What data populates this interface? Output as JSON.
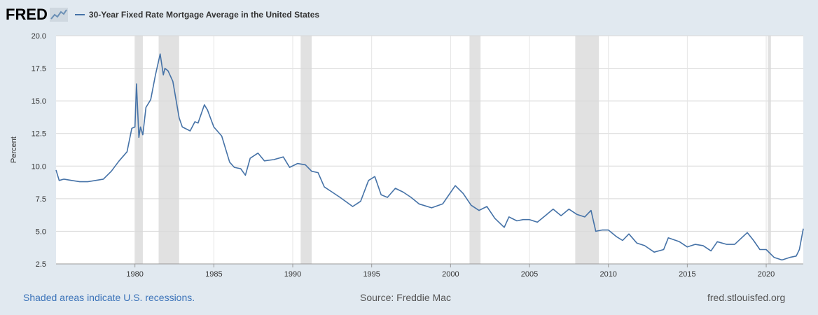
{
  "header": {
    "logo_text": "FRED",
    "legend_label": "30-Year Fixed Rate Mortgage Average in the United States"
  },
  "colors": {
    "series": "#4572a7",
    "recession": "#e1e1e1",
    "background": "#e1e9f0",
    "link": "#3b73b9"
  },
  "footer": {
    "left": "Shaded areas indicate U.S. recessions.",
    "center": "Source: Freddie Mac",
    "right": "fred.stlouisfed.org"
  },
  "chart_data": {
    "type": "line",
    "title": "30-Year Fixed Rate Mortgage Average in the United States",
    "xlabel": "",
    "ylabel": "Percent",
    "xlim": [
      1975.0,
      2022.35
    ],
    "ylim": [
      2.5,
      20.0
    ],
    "xticks": [
      1980,
      1985,
      1990,
      1995,
      2000,
      2005,
      2010,
      2015,
      2020
    ],
    "yticks": [
      2.5,
      5.0,
      7.5,
      10.0,
      12.5,
      15.0,
      17.5,
      20.0
    ],
    "ytick_labels": [
      "2.5",
      "5.0",
      "7.5",
      "10.0",
      "12.5",
      "15.0",
      "17.5",
      "20.0"
    ],
    "grid": {
      "y": true,
      "x": true
    },
    "recessions": [
      [
        1980.0,
        1980.5
      ],
      [
        1981.5,
        1982.8
      ],
      [
        1990.5,
        1991.2
      ],
      [
        2001.2,
        2001.9
      ],
      [
        2007.9,
        2009.4
      ],
      [
        2020.1,
        2020.3
      ]
    ],
    "series": [
      {
        "x": [
          1975.0,
          1975.2,
          1975.5,
          1976.0,
          1976.5,
          1977.0,
          1977.5,
          1978.0,
          1978.5,
          1979.0,
          1979.5,
          1979.8,
          1980.0,
          1980.1,
          1980.25,
          1980.35,
          1980.5,
          1980.7,
          1981.0,
          1981.3,
          1981.6,
          1981.8,
          1981.9,
          1982.1,
          1982.4,
          1982.8,
          1983.0,
          1983.5,
          1983.8,
          1984.0,
          1984.4,
          1984.6,
          1985.0,
          1985.5,
          1986.0,
          1986.3,
          1986.7,
          1987.0,
          1987.3,
          1987.8,
          1988.2,
          1988.8,
          1989.4,
          1989.8,
          1990.3,
          1990.8,
          1991.2,
          1991.6,
          1992.0,
          1992.5,
          1993.0,
          1993.8,
          1994.3,
          1994.8,
          1995.2,
          1995.6,
          1996.0,
          1996.5,
          1997.0,
          1997.5,
          1998.0,
          1998.8,
          1999.5,
          2000.3,
          2000.8,
          2001.3,
          2001.8,
          2002.3,
          2002.8,
          2003.4,
          2003.7,
          2004.2,
          2004.6,
          2005.0,
          2005.5,
          2006.0,
          2006.5,
          2007.0,
          2007.5,
          2008.0,
          2008.5,
          2008.9,
          2009.2,
          2009.6,
          2010.0,
          2010.5,
          2010.9,
          2011.3,
          2011.8,
          2012.3,
          2012.9,
          2013.5,
          2013.8,
          2014.5,
          2015.0,
          2015.5,
          2016.0,
          2016.5,
          2016.9,
          2017.5,
          2018.0,
          2018.8,
          2019.2,
          2019.6,
          2020.0,
          2020.5,
          2021.0,
          2021.5,
          2021.9,
          2022.1,
          2022.35
        ],
        "y": [
          9.7,
          8.9,
          9.0,
          8.9,
          8.8,
          8.8,
          8.9,
          9.0,
          9.6,
          10.4,
          11.1,
          12.9,
          13.0,
          16.3,
          12.2,
          13.0,
          12.4,
          14.5,
          15.1,
          17.0,
          18.6,
          17.0,
          17.5,
          17.3,
          16.5,
          13.7,
          13.0,
          12.7,
          13.4,
          13.3,
          14.7,
          14.3,
          13.0,
          12.3,
          10.3,
          9.9,
          9.8,
          9.3,
          10.6,
          11.0,
          10.4,
          10.5,
          10.7,
          9.9,
          10.2,
          10.1,
          9.6,
          9.5,
          8.4,
          8.0,
          7.6,
          6.9,
          7.3,
          8.9,
          9.2,
          7.8,
          7.6,
          8.3,
          8.0,
          7.6,
          7.1,
          6.8,
          7.1,
          8.5,
          7.9,
          7.0,
          6.6,
          6.9,
          6.0,
          5.3,
          6.1,
          5.8,
          5.9,
          5.9,
          5.7,
          6.2,
          6.7,
          6.2,
          6.7,
          6.3,
          6.1,
          6.6,
          5.0,
          5.1,
          5.1,
          4.6,
          4.3,
          4.8,
          4.1,
          3.9,
          3.4,
          3.6,
          4.5,
          4.2,
          3.8,
          4.0,
          3.9,
          3.5,
          4.2,
          4.0,
          4.0,
          4.9,
          4.3,
          3.6,
          3.6,
          3.0,
          2.8,
          3.0,
          3.1,
          3.6,
          5.2
        ]
      }
    ]
  }
}
